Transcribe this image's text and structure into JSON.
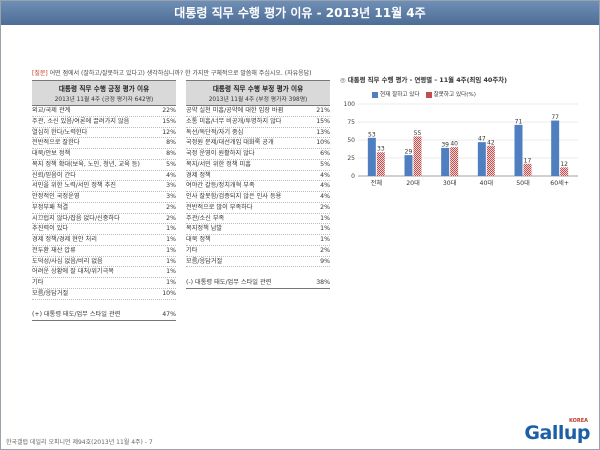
{
  "header": {
    "title": "대통령 직무 수행 평가 이유 - 2013년 11월 4주"
  },
  "question": {
    "tag": "[질문]",
    "text": " 어떤 점에서 (잘하고/잘못하고 있다고) 생각하십니까? 한 가지만 구체적으로 말씀해 주십시오. (자유응답)"
  },
  "positive_table": {
    "title": "대통령 직무 수행 긍정 평가 이유",
    "subtitle": "2013년 11월 4주 (긍정 평가자 642명)",
    "rows": [
      {
        "label": "외교/국제 관계",
        "pct": "22%"
      },
      {
        "label": "주관, 소신 있음/여론에 끌려가지 않음",
        "pct": "15%"
      },
      {
        "label": "열심히 한다/노력한다",
        "pct": "12%"
      },
      {
        "label": "전반적으로 잘한다",
        "pct": "8%"
      },
      {
        "label": "대북/안보 정책",
        "pct": "8%"
      },
      {
        "label": "복지 정책 확대(보육, 노인, 청년, 교육 등)",
        "pct": "5%"
      },
      {
        "label": "신뢰/믿음이 간다",
        "pct": "4%"
      },
      {
        "label": "서민을 위한 노력/서민 정책 추진",
        "pct": "3%"
      },
      {
        "label": "안정적인 국정운영",
        "pct": "3%"
      },
      {
        "label": "부정부패 척결",
        "pct": "2%"
      },
      {
        "label": "시끄럽지 않다/잡음 없다/신중하다",
        "pct": "2%"
      },
      {
        "label": "추진력이 있다",
        "pct": "1%"
      },
      {
        "label": "경제 정책/경제 현안 처리",
        "pct": "1%"
      },
      {
        "label": "전두환 재산 압류",
        "pct": "1%"
      },
      {
        "label": "도덕성/사심 없음/비리 없음",
        "pct": "1%"
      },
      {
        "label": "어려운 상황에 잘 대처/위기극복",
        "pct": "1%"
      },
      {
        "label": "기타",
        "pct": "1%"
      },
      {
        "label": "모름/응답거절",
        "pct": "10%"
      },
      {
        "label": "",
        "pct": ""
      },
      {
        "label": "(+) 대통령 태도/업무 스타일 관련",
        "pct": "47%"
      }
    ]
  },
  "negative_table": {
    "title": "대통령 직무 수행 부정 평가 이유",
    "subtitle": "2013년 11월 4주 (부정 평가자 398명)",
    "rows": [
      {
        "label": "공약 실천 미흡/공약에 대한 입장 바뀜",
        "pct": "21%"
      },
      {
        "label": "소통 미흡/너무 비공개/투명하지 않다",
        "pct": "15%"
      },
      {
        "label": "독선/독단적/자기 중심",
        "pct": "13%"
      },
      {
        "label": "국정원 문제/대선개입 대화록 공개",
        "pct": "10%"
      },
      {
        "label": "국정 운영이 원활하지 않다",
        "pct": "6%"
      },
      {
        "label": "복지/서민 위한 정책 미흡",
        "pct": "5%"
      },
      {
        "label": "경제 정책",
        "pct": "4%"
      },
      {
        "label": "여야간 갈등/정치개혁 부족",
        "pct": "4%"
      },
      {
        "label": "인사 잘못함/검증되지 않은 인사 등용",
        "pct": "4%"
      },
      {
        "label": "전반적으로 많이 부족하다",
        "pct": "2%"
      },
      {
        "label": "주관/소신 부족",
        "pct": "1%"
      },
      {
        "label": "복지정책 남발",
        "pct": "1%"
      },
      {
        "label": "대북 정책",
        "pct": "1%"
      },
      {
        "label": "기타",
        "pct": "2%"
      },
      {
        "label": "모름/응답거절",
        "pct": "9%"
      },
      {
        "label": "",
        "pct": ""
      },
      {
        "label": "(-) 대통령 태도/업무 스타일 관련",
        "pct": "38%"
      }
    ]
  },
  "chart_data": {
    "type": "bar",
    "title": "대통령 직무 수행 평가 - 연령별 - 11월 4주(최임 40주차)",
    "categories": [
      "전체",
      "20대",
      "30대",
      "40대",
      "50대",
      "60세+"
    ],
    "series": [
      {
        "name": "현재 잘하고 있다",
        "values": [
          53,
          29,
          39,
          47,
          71,
          77
        ],
        "color": "#4f7fc0"
      },
      {
        "name": "잘못하고 있다(%)",
        "values": [
          33,
          55,
          40,
          42,
          17,
          12
        ],
        "color": "#c0504d"
      }
    ],
    "ylim": [
      0,
      100
    ],
    "yticks": [
      "0",
      "25",
      "50",
      "75",
      "100"
    ],
    "xlabel": "",
    "ylabel": "",
    "grid": true,
    "legend": "top"
  },
  "footer": {
    "text": "한국갤럽 데일리 오피니언 제94호(2013년 11월 4주) - 7"
  },
  "logo": {
    "text": "Gallup",
    "small": "KOREA"
  }
}
